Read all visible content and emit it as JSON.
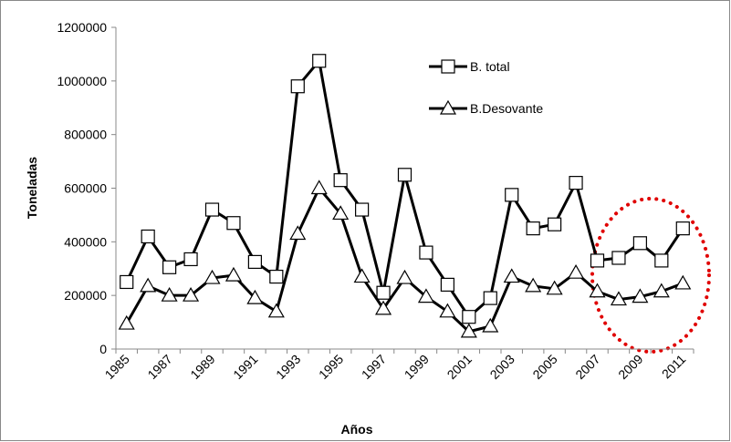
{
  "chart_data": {
    "type": "line",
    "categories": [
      1985,
      null,
      1987,
      null,
      1989,
      null,
      1991,
      null,
      1993,
      null,
      1995,
      null,
      1997,
      null,
      1999,
      null,
      2001,
      null,
      2003,
      null,
      2005,
      null,
      2007,
      null,
      2009,
      null,
      2011
    ],
    "series": [
      {
        "name": "B. total",
        "color": "#000000",
        "marker": "square",
        "values": [
          250000,
          420000,
          305000,
          335000,
          520000,
          470000,
          325000,
          270000,
          980000,
          1075000,
          630000,
          520000,
          210000,
          650000,
          360000,
          240000,
          120000,
          190000,
          575000,
          450000,
          465000,
          620000,
          330000,
          340000,
          395000,
          330000,
          450000
        ]
      },
      {
        "name": "B.Desovante",
        "color": "#000000",
        "marker": "triangle",
        "values": [
          95000,
          235000,
          200000,
          200000,
          265000,
          275000,
          190000,
          140000,
          430000,
          600000,
          505000,
          270000,
          150000,
          265000,
          195000,
          140000,
          65000,
          85000,
          270000,
          235000,
          225000,
          285000,
          215000,
          185000,
          195000,
          215000,
          245000
        ]
      }
    ],
    "xlabel": "Años",
    "ylabel": "Toneladas",
    "ylim": [
      0,
      1200000
    ],
    "yticks": [
      0,
      200000,
      400000,
      600000,
      800000,
      1000000,
      1200000
    ],
    "grid": false
  }
}
